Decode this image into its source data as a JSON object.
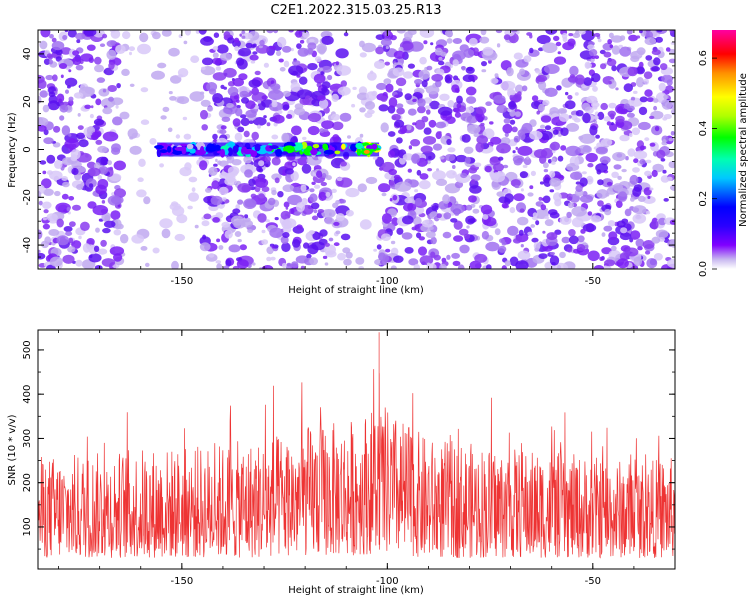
{
  "title": "C2E1.2022.315.03.25.R13",
  "chart_data": [
    {
      "type": "heatmap",
      "xlabel": "Height of straight line (km)",
      "ylabel": "Frequency (Hz)",
      "xlim": [
        -185,
        -30
      ],
      "ylim": [
        -50,
        50
      ],
      "xticks": [
        -150,
        -100,
        -50
      ],
      "yticks": [
        -40,
        -20,
        0,
        20,
        40
      ],
      "colorbar": {
        "label": "Normalized spectral amplitude",
        "range": [
          0.0,
          0.68
        ],
        "ticks": [
          0.0,
          0.2,
          0.4,
          0.6
        ],
        "colormap": [
          "#ffffff",
          "#c8b8f0",
          "#8000ff",
          "#2a00ff",
          "#0000ff",
          "#00c8ff",
          "#00ffb0",
          "#00ff00",
          "#b0ff00",
          "#ffff00",
          "#ff9000",
          "#ff0000",
          "#ff00a0"
        ]
      },
      "features": {
        "background_noise_amplitude": [
          0.02,
          0.15
        ],
        "signal_band": {
          "x_range": [
            -156,
            -102
          ],
          "frequency_hz": 0,
          "amplitude": [
            0.2,
            0.6
          ]
        },
        "peak": {
          "x": -105,
          "frequency_hz": -1,
          "amplitude": 0.55
        },
        "quiet_columns": [
          [
            -165,
            -145
          ],
          [
            -110,
            -102
          ]
        ]
      }
    },
    {
      "type": "line",
      "xlabel": "Height of straight line (km)",
      "ylabel": "SNR (10 * v/v)",
      "xlim": [
        -185,
        -30
      ],
      "ylim": [
        5,
        545
      ],
      "xticks": [
        -150,
        -100,
        -50
      ],
      "yticks": [
        100,
        200,
        300,
        400,
        500
      ],
      "series": [
        {
          "color": "#ee3333",
          "sample_count": 1500,
          "envelope": [
            {
              "x": -185,
              "typical_low": 30,
              "typical_high": 260,
              "max": 320
            },
            {
              "x": -170,
              "typical_low": 30,
              "typical_high": 270,
              "max": 330
            },
            {
              "x": -160,
              "typical_low": 30,
              "typical_high": 280,
              "max": 400
            },
            {
              "x": -150,
              "typical_low": 30,
              "typical_high": 280,
              "max": 330
            },
            {
              "x": -140,
              "typical_low": 30,
              "typical_high": 290,
              "max": 380
            },
            {
              "x": -130,
              "typical_low": 30,
              "typical_high": 300,
              "max": 420
            },
            {
              "x": -120,
              "typical_low": 35,
              "typical_high": 330,
              "max": 450
            },
            {
              "x": -110,
              "typical_low": 35,
              "typical_high": 340,
              "max": 470
            },
            {
              "x": -102,
              "typical_low": 40,
              "typical_high": 380,
              "max": 540
            },
            {
              "x": -90,
              "typical_low": 30,
              "typical_high": 300,
              "max": 380
            },
            {
              "x": -80,
              "typical_low": 30,
              "typical_high": 290,
              "max": 400
            },
            {
              "x": -70,
              "typical_low": 30,
              "typical_high": 280,
              "max": 390
            },
            {
              "x": -60,
              "typical_low": 30,
              "typical_high": 270,
              "max": 370
            },
            {
              "x": -50,
              "typical_low": 30,
              "typical_high": 260,
              "max": 340
            },
            {
              "x": -40,
              "typical_low": 30,
              "typical_high": 250,
              "max": 320
            },
            {
              "x": -30,
              "typical_low": 30,
              "typical_high": 260,
              "max": 310
            }
          ]
        }
      ]
    }
  ]
}
